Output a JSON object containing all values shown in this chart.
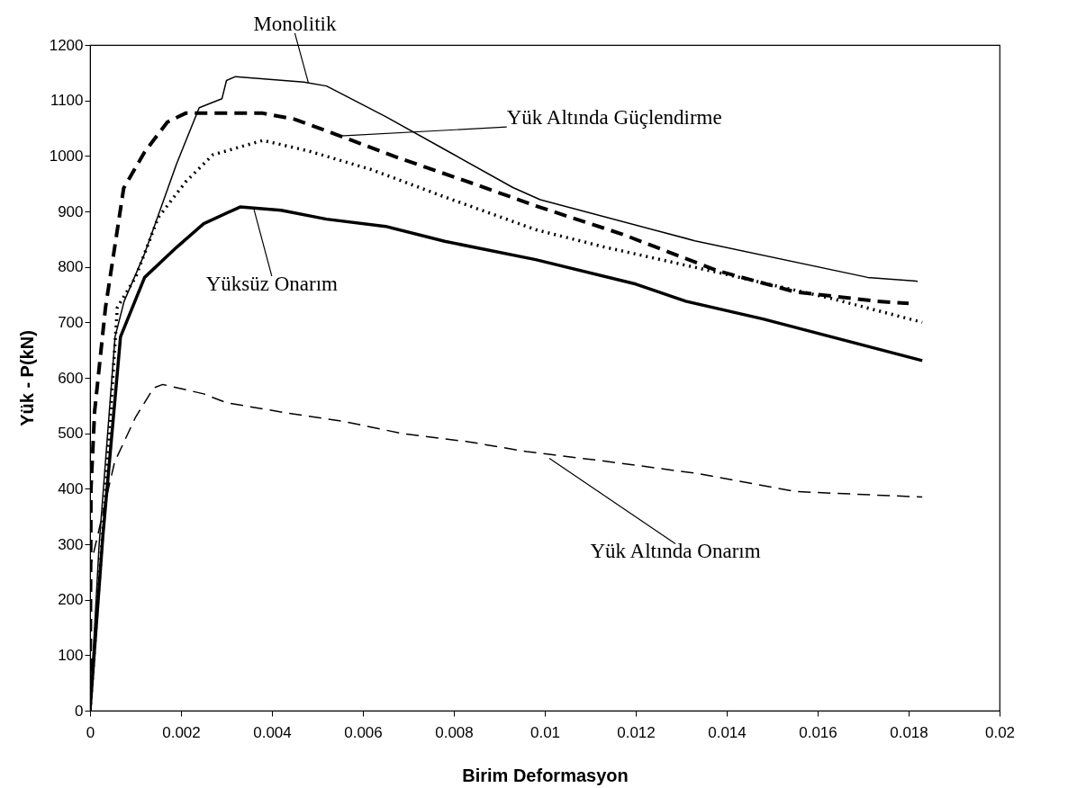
{
  "chart_data": {
    "type": "line",
    "xlabel": "Birim Deformasyon",
    "ylabel": "Yük - P(kN)",
    "xlim": [
      0,
      0.02
    ],
    "xticks": [
      0,
      0.002,
      0.004,
      0.006,
      0.008,
      0.01,
      0.012,
      0.014,
      0.016,
      0.018,
      0.02
    ],
    "ylim": [
      0,
      1200
    ],
    "yticks": [
      0,
      100,
      200,
      300,
      400,
      500,
      600,
      700,
      800,
      900,
      1000,
      1100,
      1200
    ],
    "grid": false,
    "marker": "none",
    "series": [
      {
        "color": "#000000",
        "line_style": "solid",
        "x": [
          0,
          0.0002,
          0.00055,
          0.00075,
          0.0012,
          0.0019,
          0.0024,
          0.0029,
          0.003,
          0.0032,
          0.0047,
          0.0052,
          0.0065,
          0.0079,
          0.0093,
          0.0099,
          0.0133,
          0.0171,
          0.0182
        ],
        "values": [
          0,
          300,
          674,
          738,
          824,
          985,
          1087,
          1103,
          1136,
          1143,
          1133,
          1126,
          1071,
          1007,
          943,
          921,
          847,
          781,
          774
        ]
      },
      {
        "color": "#000000",
        "line_style": "dashed",
        "x": [
          0,
          2e-05,
          0.0001,
          0.00034,
          0.00074,
          0.0012,
          0.0017,
          0.0021,
          0.0038,
          0.0045,
          0.0054,
          0.0068,
          0.0085,
          0.0098,
          0.0117,
          0.0138,
          0.0155,
          0.0173,
          0.018
        ],
        "values": [
          0,
          400,
          539,
          727,
          942,
          1007,
          1061,
          1077,
          1077,
          1066,
          1039,
          996,
          948,
          910,
          859,
          793,
          755,
          738,
          734
        ]
      },
      {
        "color": "#000000",
        "line_style": "dotted",
        "x": [
          0,
          0.00034,
          0.0006,
          0.001,
          0.0015,
          0.0021,
          0.0027,
          0.0038,
          0.0048,
          0.0062,
          0.0078,
          0.0098,
          0.0113,
          0.0138,
          0.0163,
          0.0183
        ],
        "values": [
          0,
          394,
          727,
          781,
          889,
          953,
          1002,
          1028,
          1009,
          975,
          926,
          867,
          836,
          790,
          743,
          700
        ]
      },
      {
        "color": "#000000",
        "line_style": "solid",
        "x": [
          0,
          0.00028,
          0.00067,
          0.0012,
          0.0019,
          0.0025,
          0.0033,
          0.0042,
          0.0052,
          0.0065,
          0.0078,
          0.0098,
          0.012,
          0.0131,
          0.0148,
          0.0183
        ],
        "values": [
          0,
          313,
          674,
          781,
          835,
          878,
          908,
          902,
          886,
          873,
          846,
          813,
          769,
          738,
          706,
          631
        ]
      },
      {
        "color": "#000000",
        "line_style": "dashed",
        "x": [
          0,
          1e-05,
          0.00054,
          0.001,
          0.0014,
          0.0016,
          0.0025,
          0.003,
          0.0043,
          0.0056,
          0.0069,
          0.0083,
          0.0096,
          0.0113,
          0.0134,
          0.0155,
          0.0183
        ],
        "values": [
          0,
          260,
          448,
          529,
          582,
          588,
          571,
          555,
          537,
          521,
          499,
          485,
          467,
          450,
          427,
          395,
          385
        ]
      }
    ],
    "annotations": [
      {
        "text": "Monolitik",
        "x": 0.0048,
        "y": 1132
      },
      {
        "text": "Yük Altında Güçlendirme",
        "x": 0.0055,
        "y": 1036
      },
      {
        "text": "Yüksüz Onarım",
        "x": 0.0036,
        "y": 905
      },
      {
        "text": "Yük Altında Onarım",
        "x": 0.0101,
        "y": 455
      }
    ]
  }
}
